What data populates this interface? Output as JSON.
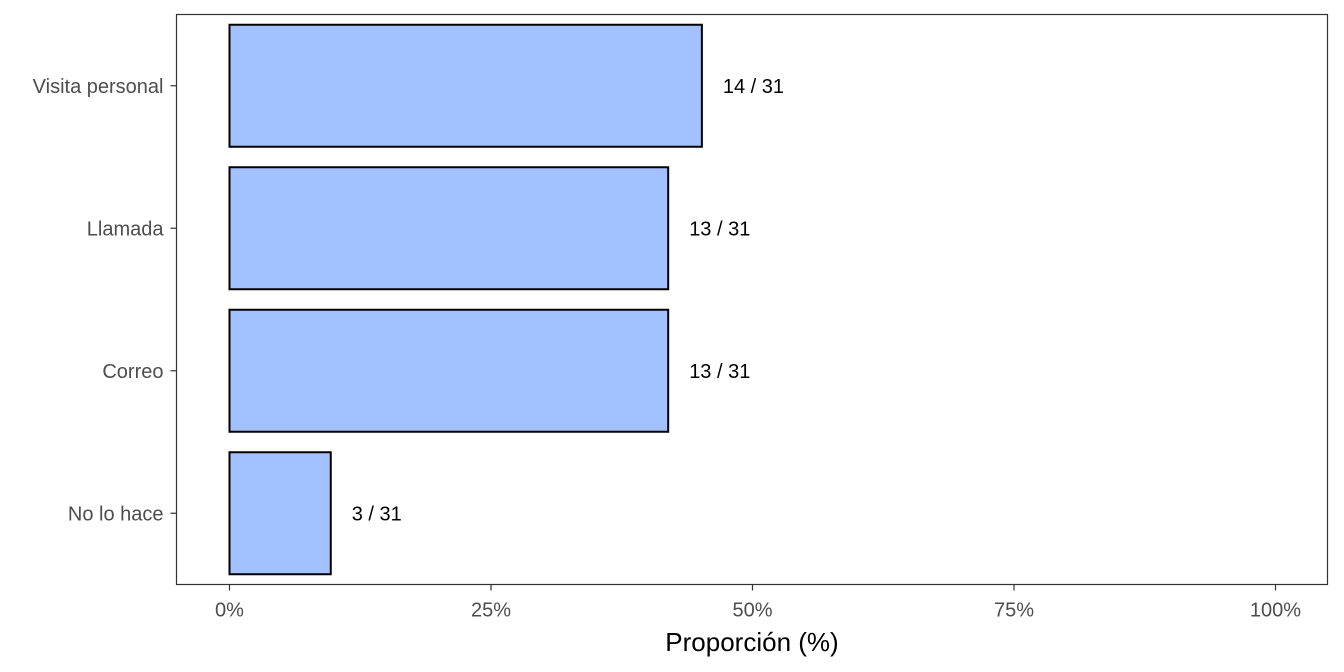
{
  "chart_data": {
    "type": "bar",
    "orientation": "horizontal",
    "title": "",
    "xlabel": "Proporción (%)",
    "ylabel": "",
    "xlim": [
      0,
      100
    ],
    "x_ticks": [
      0,
      25,
      50,
      75,
      100
    ],
    "x_tick_labels": [
      "0%",
      "25%",
      "50%",
      "75%",
      "100%"
    ],
    "categories": [
      "Visita personal",
      "Llamada",
      "Correo",
      "No lo hace"
    ],
    "values": [
      45.16,
      41.94,
      41.94,
      9.68
    ],
    "data_labels": [
      "14 / 31",
      "13 / 31",
      "13 / 31",
      "3 / 31"
    ],
    "grid": false,
    "legend": "none",
    "bar_color": "#a4c1ff",
    "bar_edge_color": "#000000"
  }
}
